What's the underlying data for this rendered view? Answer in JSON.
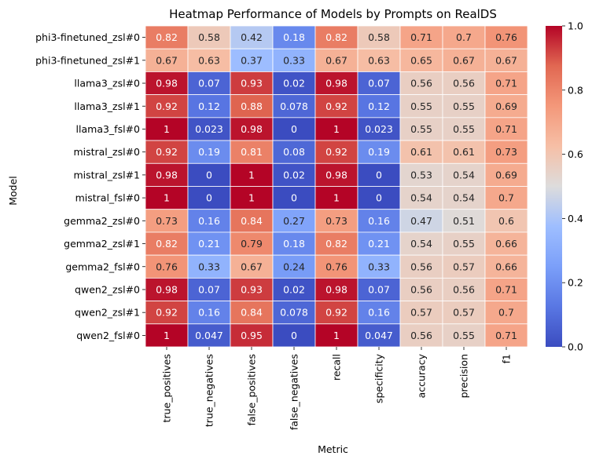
{
  "chart_data": {
    "type": "heatmap",
    "title": "Heatmap Performance of Models by Prompts on RealDS",
    "xlabel": "Metric",
    "ylabel": "Model",
    "rows": [
      "phi3-finetuned_zsl#0",
      "phi3-finetuned_zsl#1",
      "llama3_zsl#0",
      "llama3_zsl#1",
      "llama3_fsl#0",
      "mistral_zsl#0",
      "mistral_zsl#1",
      "mistral_fsl#0",
      "gemma2_zsl#0",
      "gemma2_zsl#1",
      "gemma2_fsl#0",
      "qwen2_zsl#0",
      "qwen2_zsl#1",
      "qwen2_fsl#0"
    ],
    "columns": [
      "true_positives",
      "true_negatives",
      "false_positives",
      "false_negatives",
      "recall",
      "specificity",
      "accuracy",
      "precision",
      "f1"
    ],
    "values": [
      [
        "0.82",
        "0.58",
        "0.42",
        "0.18",
        "0.82",
        "0.58",
        "0.71",
        "0.7",
        "0.76"
      ],
      [
        "0.67",
        "0.63",
        "0.37",
        "0.33",
        "0.67",
        "0.63",
        "0.65",
        "0.67",
        "0.67"
      ],
      [
        "0.98",
        "0.07",
        "0.93",
        "0.02",
        "0.98",
        "0.07",
        "0.56",
        "0.56",
        "0.71"
      ],
      [
        "0.92",
        "0.12",
        "0.88",
        "0.078",
        "0.92",
        "0.12",
        "0.55",
        "0.55",
        "0.69"
      ],
      [
        "1",
        "0.023",
        "0.98",
        "0",
        "1",
        "0.023",
        "0.55",
        "0.55",
        "0.71"
      ],
      [
        "0.92",
        "0.19",
        "0.81",
        "0.08",
        "0.92",
        "0.19",
        "0.61",
        "0.61",
        "0.73"
      ],
      [
        "0.98",
        "0",
        "1",
        "0.02",
        "0.98",
        "0",
        "0.53",
        "0.54",
        "0.69"
      ],
      [
        "1",
        "0",
        "1",
        "0",
        "1",
        "0",
        "0.54",
        "0.54",
        "0.7"
      ],
      [
        "0.73",
        "0.16",
        "0.84",
        "0.27",
        "0.73",
        "0.16",
        "0.47",
        "0.51",
        "0.6"
      ],
      [
        "0.82",
        "0.21",
        "0.79",
        "0.18",
        "0.82",
        "0.21",
        "0.54",
        "0.55",
        "0.66"
      ],
      [
        "0.76",
        "0.33",
        "0.67",
        "0.24",
        "0.76",
        "0.33",
        "0.56",
        "0.57",
        "0.66"
      ],
      [
        "0.98",
        "0.07",
        "0.93",
        "0.02",
        "0.98",
        "0.07",
        "0.56",
        "0.56",
        "0.71"
      ],
      [
        "0.92",
        "0.16",
        "0.84",
        "0.078",
        "0.92",
        "0.16",
        "0.57",
        "0.57",
        "0.7"
      ],
      [
        "1",
        "0.047",
        "0.95",
        "0",
        "1",
        "0.047",
        "0.56",
        "0.55",
        "0.71"
      ]
    ],
    "colormap": "coolwarm",
    "vmin": 0,
    "vmax": 1,
    "colorbar_ticks": [
      "0.0",
      "0.2",
      "0.4",
      "0.6",
      "0.8",
      "1.0"
    ],
    "grid_line_color": "#ffffff"
  }
}
